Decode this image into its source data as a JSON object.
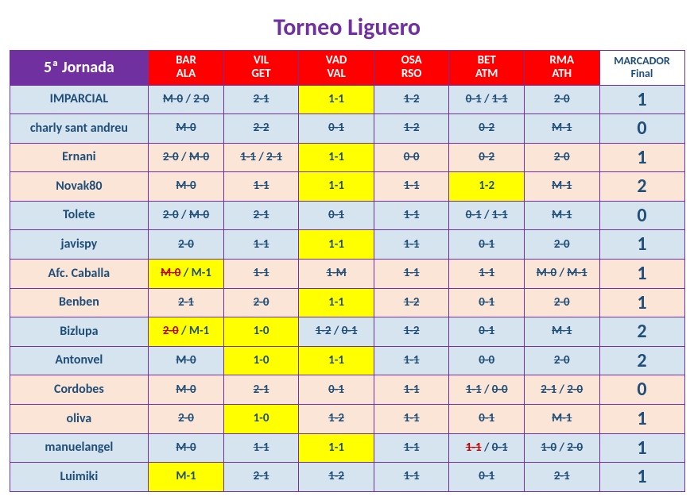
{
  "title": "Torneo Liguero",
  "header": {
    "corner": "5ª Jornada",
    "matches": [
      {
        "top": "BAR",
        "bot": "ALA"
      },
      {
        "top": "VIL",
        "bot": "GET"
      },
      {
        "top": "VAD",
        "bot": "VAL"
      },
      {
        "top": "OSA",
        "bot": "RSO"
      },
      {
        "top": "BET",
        "bot": "ATM"
      },
      {
        "top": "RMA",
        "bot": "ATH"
      }
    ],
    "marcador": {
      "top": "MARCADOR",
      "bot": "Final"
    }
  },
  "colors": {
    "accent": "#7030a0",
    "header_match_bg": "#ff0000",
    "text_primary": "#1f4e79",
    "row_a_bg": "#d6e4ef",
    "row_b_bg": "#fbe5d6",
    "highlight_bg": "#ffff00",
    "wrong_red": "#c00000"
  },
  "rows": [
    {
      "band": "a",
      "name": "IMPARCIAL",
      "score": "1",
      "cells": [
        {
          "segs": [
            {
              "t": "M-0",
              "st": true
            },
            {
              "t": " / "
            },
            {
              "t": "2-0",
              "st": true
            }
          ]
        },
        {
          "segs": [
            {
              "t": "2-1",
              "st": true
            }
          ]
        },
        {
          "hl": true,
          "segs": [
            {
              "t": "1-1"
            }
          ]
        },
        {
          "segs": [
            {
              "t": "1-2",
              "st": true
            }
          ]
        },
        {
          "segs": [
            {
              "t": "0-1",
              "st": true
            },
            {
              "t": " / "
            },
            {
              "t": "1-1",
              "st": true
            }
          ]
        },
        {
          "segs": [
            {
              "t": "2-0",
              "st": true
            }
          ]
        }
      ]
    },
    {
      "band": "a",
      "name": "charly sant andreu",
      "score": "0",
      "cells": [
        {
          "segs": [
            {
              "t": "M-0",
              "st": true
            }
          ]
        },
        {
          "segs": [
            {
              "t": "2-2",
              "st": true
            }
          ]
        },
        {
          "segs": [
            {
              "t": "0-1",
              "st": true
            }
          ]
        },
        {
          "segs": [
            {
              "t": "1-2",
              "st": true
            }
          ]
        },
        {
          "segs": [
            {
              "t": "0-2",
              "st": true
            }
          ]
        },
        {
          "segs": [
            {
              "t": "M-1",
              "st": true
            }
          ]
        }
      ]
    },
    {
      "band": "b",
      "name": "Ernani",
      "score": "1",
      "cells": [
        {
          "segs": [
            {
              "t": "2-0",
              "st": true
            },
            {
              "t": " / "
            },
            {
              "t": "M-0",
              "st": true
            }
          ]
        },
        {
          "segs": [
            {
              "t": "1-1",
              "st": true
            },
            {
              "t": " / "
            },
            {
              "t": "2-1",
              "st": true
            }
          ]
        },
        {
          "hl": true,
          "segs": [
            {
              "t": "1-1"
            }
          ]
        },
        {
          "segs": [
            {
              "t": "0-0",
              "st": true
            }
          ]
        },
        {
          "segs": [
            {
              "t": "0-2",
              "st": true
            }
          ]
        },
        {
          "segs": [
            {
              "t": "2-0",
              "st": true
            }
          ]
        }
      ]
    },
    {
      "band": "b",
      "name": "Novak80",
      "score": "2",
      "cells": [
        {
          "segs": [
            {
              "t": "M-0",
              "st": true
            }
          ]
        },
        {
          "segs": [
            {
              "t": "1-1",
              "st": true
            }
          ]
        },
        {
          "hl": true,
          "segs": [
            {
              "t": "1-1"
            }
          ]
        },
        {
          "segs": [
            {
              "t": "1-1",
              "st": true
            }
          ]
        },
        {
          "hl": true,
          "segs": [
            {
              "t": "1-2"
            }
          ]
        },
        {
          "segs": [
            {
              "t": "M-1",
              "st": true
            }
          ]
        }
      ]
    },
    {
      "band": "a",
      "name": "Tolete",
      "score": "0",
      "cells": [
        {
          "segs": [
            {
              "t": "2-0",
              "st": true
            },
            {
              "t": " / "
            },
            {
              "t": "M-0",
              "st": true
            }
          ]
        },
        {
          "segs": [
            {
              "t": "2-1",
              "st": true
            }
          ]
        },
        {
          "segs": [
            {
              "t": "0-1",
              "st": true
            }
          ]
        },
        {
          "segs": [
            {
              "t": "1-1",
              "st": true
            }
          ]
        },
        {
          "segs": [
            {
              "t": "0-1",
              "st": true
            },
            {
              "t": " / "
            },
            {
              "t": "1-1",
              "st": true
            }
          ]
        },
        {
          "segs": [
            {
              "t": "M-1",
              "st": true
            }
          ]
        }
      ]
    },
    {
      "band": "a",
      "name": "javispy",
      "score": "1",
      "cells": [
        {
          "segs": [
            {
              "t": "2-0",
              "st": true
            }
          ]
        },
        {
          "segs": [
            {
              "t": "1-1",
              "st": true
            }
          ]
        },
        {
          "hl": true,
          "segs": [
            {
              "t": "1-1"
            }
          ]
        },
        {
          "segs": [
            {
              "t": "1-1",
              "st": true
            }
          ]
        },
        {
          "segs": [
            {
              "t": "0-1",
              "st": true
            }
          ]
        },
        {
          "segs": [
            {
              "t": "2-0",
              "st": true
            }
          ]
        }
      ]
    },
    {
      "band": "b",
      "name": "Afc. Caballa",
      "score": "1",
      "cells": [
        {
          "hl": true,
          "segs": [
            {
              "t": "M-0",
              "st": true,
              "red": true
            },
            {
              "t": " / "
            },
            {
              "t": "M-1"
            }
          ]
        },
        {
          "segs": [
            {
              "t": "1-1",
              "st": true
            }
          ]
        },
        {
          "segs": [
            {
              "t": "1-M",
              "st": true
            }
          ]
        },
        {
          "segs": [
            {
              "t": "1-1",
              "st": true
            }
          ]
        },
        {
          "segs": [
            {
              "t": "1-1",
              "st": true
            }
          ]
        },
        {
          "segs": [
            {
              "t": "M-0",
              "st": true
            },
            {
              "t": " / "
            },
            {
              "t": "M-1",
              "st": true
            }
          ]
        }
      ]
    },
    {
      "band": "b",
      "name": "Benben",
      "score": "1",
      "cells": [
        {
          "segs": [
            {
              "t": "2-1",
              "st": true
            }
          ]
        },
        {
          "segs": [
            {
              "t": "2-0",
              "st": true
            }
          ]
        },
        {
          "hl": true,
          "segs": [
            {
              "t": "1-1"
            }
          ]
        },
        {
          "segs": [
            {
              "t": "1-2",
              "st": true
            }
          ]
        },
        {
          "segs": [
            {
              "t": "0-1",
              "st": true
            }
          ]
        },
        {
          "segs": [
            {
              "t": "2-0",
              "st": true
            }
          ]
        }
      ]
    },
    {
      "band": "a",
      "name": "Bizlupa",
      "score": "2",
      "cells": [
        {
          "hl": true,
          "segs": [
            {
              "t": "2-0",
              "st": true,
              "red": true
            },
            {
              "t": " / "
            },
            {
              "t": "M-1"
            }
          ]
        },
        {
          "hl": true,
          "segs": [
            {
              "t": "1-0"
            }
          ]
        },
        {
          "segs": [
            {
              "t": "1-2",
              "st": true
            },
            {
              "t": " / "
            },
            {
              "t": "0-1",
              "st": true
            }
          ]
        },
        {
          "segs": [
            {
              "t": "1-2",
              "st": true
            }
          ]
        },
        {
          "segs": [
            {
              "t": "0-1",
              "st": true
            }
          ]
        },
        {
          "segs": [
            {
              "t": "M-1",
              "st": true
            }
          ]
        }
      ]
    },
    {
      "band": "a",
      "name": "Antonvel",
      "score": "2",
      "cells": [
        {
          "segs": [
            {
              "t": "M-0",
              "st": true
            }
          ]
        },
        {
          "hl": true,
          "segs": [
            {
              "t": "1-0"
            }
          ]
        },
        {
          "hl": true,
          "segs": [
            {
              "t": "1-1"
            }
          ]
        },
        {
          "segs": [
            {
              "t": "1-1",
              "st": true
            }
          ]
        },
        {
          "segs": [
            {
              "t": "0-0",
              "st": true
            }
          ]
        },
        {
          "segs": [
            {
              "t": "2-0",
              "st": true
            }
          ]
        }
      ]
    },
    {
      "band": "b",
      "name": "Cordobes",
      "score": "0",
      "cells": [
        {
          "segs": [
            {
              "t": "M-0",
              "st": true
            }
          ]
        },
        {
          "segs": [
            {
              "t": "2-1",
              "st": true
            }
          ]
        },
        {
          "segs": [
            {
              "t": "0-1",
              "st": true
            }
          ]
        },
        {
          "segs": [
            {
              "t": "1-1",
              "st": true
            }
          ]
        },
        {
          "segs": [
            {
              "t": "1-1",
              "st": true
            },
            {
              "t": " / "
            },
            {
              "t": "0-0",
              "st": true
            }
          ]
        },
        {
          "segs": [
            {
              "t": "2-1",
              "st": true
            },
            {
              "t": " / "
            },
            {
              "t": "2-0",
              "st": true
            }
          ]
        }
      ]
    },
    {
      "band": "b",
      "name": "oliva",
      "score": "1",
      "cells": [
        {
          "segs": [
            {
              "t": "2-0",
              "st": true
            }
          ]
        },
        {
          "hl": true,
          "segs": [
            {
              "t": "1-0"
            }
          ]
        },
        {
          "segs": [
            {
              "t": "1-2",
              "st": true
            }
          ]
        },
        {
          "segs": [
            {
              "t": "1-1",
              "st": true
            }
          ]
        },
        {
          "segs": [
            {
              "t": "0-1",
              "st": true
            }
          ]
        },
        {
          "segs": [
            {
              "t": "M-1",
              "st": true
            }
          ]
        }
      ]
    },
    {
      "band": "a",
      "name": "manuelangel",
      "score": "1",
      "cells": [
        {
          "segs": [
            {
              "t": "M-0",
              "st": true
            }
          ]
        },
        {
          "segs": [
            {
              "t": "1-1",
              "st": true
            }
          ]
        },
        {
          "hl": true,
          "segs": [
            {
              "t": "1-1"
            }
          ]
        },
        {
          "segs": [
            {
              "t": "1-1",
              "st": true
            }
          ]
        },
        {
          "segs": [
            {
              "t": "1-1",
              "st": true,
              "red": true
            },
            {
              "t": " / "
            },
            {
              "t": "0-1",
              "st": true
            }
          ]
        },
        {
          "segs": [
            {
              "t": "1-0",
              "st": true
            },
            {
              "t": " / "
            },
            {
              "t": "2-0",
              "st": true
            }
          ]
        }
      ]
    },
    {
      "band": "a",
      "name": "Luimiki",
      "score": "1",
      "cells": [
        {
          "hl": true,
          "segs": [
            {
              "t": "M-1"
            }
          ]
        },
        {
          "segs": [
            {
              "t": "2-1",
              "st": true
            }
          ]
        },
        {
          "segs": [
            {
              "t": "1-2",
              "st": true
            }
          ]
        },
        {
          "segs": [
            {
              "t": "1-1",
              "st": true
            }
          ]
        },
        {
          "segs": [
            {
              "t": "0-1",
              "st": true
            }
          ]
        },
        {
          "segs": [
            {
              "t": "2-1",
              "st": true
            }
          ]
        }
      ]
    }
  ]
}
